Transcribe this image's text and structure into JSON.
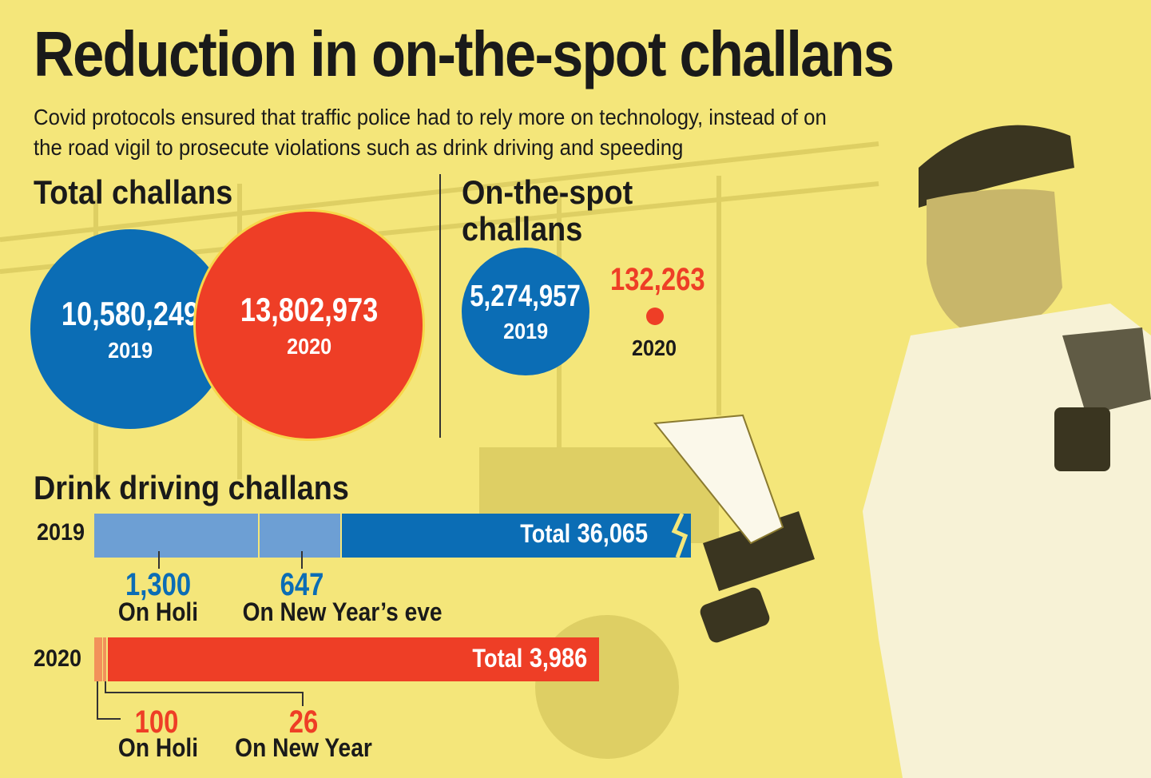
{
  "header": {
    "title": "Reduction in on-the-spot challans",
    "subtitle": "Covid protocols ensured that traffic police had to rely more on technology, instead of on the road vigil to prosecute violations such as drink driving and speeding"
  },
  "colors": {
    "blue": "#0b6db5",
    "red": "#ee3e26",
    "light_blue": "#6d9fd4",
    "light_red": "#f2915a",
    "background": "#f4e67a"
  },
  "chart_data": [
    {
      "type": "bubble",
      "title": "Total challans",
      "categories": [
        "2019",
        "2020"
      ],
      "values": [
        10580249,
        13802973
      ],
      "labels": [
        "10,580,249",
        "13,802,973"
      ]
    },
    {
      "type": "bubble",
      "title": "On-the-spot challans",
      "categories": [
        "2019",
        "2020"
      ],
      "values": [
        5274957,
        132263
      ],
      "labels": [
        "5,274,957",
        "132,263"
      ]
    },
    {
      "type": "bar",
      "title": "Drink driving challans",
      "series": [
        {
          "year": "2019",
          "total": 36065,
          "total_label": "36,065",
          "total_word": "Total",
          "segments": [
            {
              "value": 1300,
              "label": "1,300",
              "name": "On Holi"
            },
            {
              "value": 647,
              "label": "647",
              "name": "On New Year’s eve"
            }
          ],
          "broken_axis": true
        },
        {
          "year": "2020",
          "total": 3986,
          "total_label": "3,986",
          "total_word": "Total",
          "segments": [
            {
              "value": 100,
              "label": "100",
              "name": "On Holi"
            },
            {
              "value": 26,
              "label": "26",
              "name": "On New Year"
            }
          ],
          "broken_axis": false
        }
      ]
    }
  ]
}
